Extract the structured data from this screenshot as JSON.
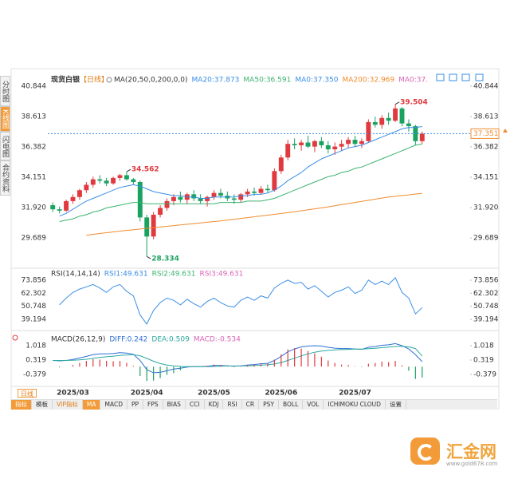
{
  "header": {
    "title": "现货白银",
    "period": "【日线】"
  },
  "sidebar": [
    "分时图",
    "K线图",
    "闪电图",
    "合约资料"
  ],
  "period_tab": "日线",
  "toolbar": {
    "tabs": [
      "指标",
      "模板"
    ],
    "vip": "VIP指标",
    "indicators": [
      "MA",
      "MACD",
      "PP",
      "FPS",
      "BIAS",
      "CCI",
      "KDJ",
      "RSI",
      "CR",
      "PSY",
      "BOLL",
      "VOL",
      "ICHIMOKU CLOUD"
    ],
    "settings": "设置"
  },
  "watermark": {
    "name": "汇金网",
    "url": "www.gold678.com"
  },
  "chart_data": [
    {
      "type": "candlestick",
      "legend_title": "MA(20,50,0,200,0,0)",
      "up_color": "#e0393e",
      "down_color": "#1aa260",
      "high_label_color": "#e0393e",
      "low_label_color": "#1aa260",
      "last_color": "#f08c30",
      "categories": [
        null,
        null,
        null,
        "2025/03",
        null,
        null,
        null,
        null,
        null,
        null,
        null,
        null,
        null,
        null,
        "2025/04",
        null,
        null,
        null,
        null,
        null,
        null,
        null,
        null,
        null,
        "2025/05",
        null,
        null,
        null,
        null,
        null,
        null,
        null,
        null,
        null,
        "2025/06",
        null,
        null,
        null,
        null,
        null,
        null,
        null,
        null,
        null,
        null,
        "2025/07",
        null,
        null,
        null,
        null,
        null,
        null,
        null,
        null,
        null,
        null
      ],
      "open": [
        32.1,
        31.8,
        31.7,
        32.4,
        32.7,
        33.2,
        33.6,
        34.0,
        33.9,
        33.7,
        34.1,
        34.3,
        34.0,
        33.8,
        31.2,
        29.8,
        31.4,
        31.9,
        32.4,
        32.7,
        32.5,
        32.9,
        32.6,
        32.4,
        32.7,
        33.0,
        32.8,
        32.6,
        32.5,
        32.9,
        33.1,
        33.0,
        33.3,
        33.2,
        34.6,
        35.6,
        36.6,
        36.5,
        36.7,
        36.4,
        36.8,
        36.5,
        36.2,
        36.4,
        36.6,
        36.9,
        36.6,
        36.8,
        38.2,
        38.0,
        38.5,
        38.3,
        39.2,
        38.1,
        37.9,
        36.8
      ],
      "high": [
        32.3,
        32.0,
        32.5,
        32.9,
        33.3,
        33.8,
        34.2,
        34.3,
        34.1,
        34.2,
        34.4,
        34.562,
        34.1,
        33.9,
        31.4,
        31.6,
        32.1,
        32.6,
        32.9,
        33.1,
        33.0,
        33.2,
        32.9,
        32.8,
        33.2,
        33.3,
        33.1,
        32.9,
        33.0,
        33.3,
        33.4,
        33.5,
        33.6,
        34.8,
        35.8,
        36.9,
        37.0,
        36.9,
        37.2,
        36.9,
        37.1,
        36.8,
        36.7,
        36.9,
        37.1,
        37.2,
        37.0,
        38.4,
        38.6,
        38.7,
        38.9,
        39.504,
        39.3,
        38.4,
        38.0,
        37.5
      ],
      "low": [
        31.6,
        31.5,
        31.6,
        32.2,
        32.5,
        33.0,
        33.4,
        33.7,
        33.5,
        33.6,
        33.9,
        33.9,
        33.6,
        30.9,
        28.334,
        29.6,
        31.2,
        31.7,
        32.1,
        32.3,
        32.2,
        32.4,
        32.2,
        32.0,
        32.5,
        32.6,
        32.4,
        32.2,
        32.3,
        32.7,
        32.8,
        32.9,
        33.0,
        33.1,
        34.4,
        35.4,
        36.2,
        36.1,
        36.3,
        36.0,
        36.3,
        35.9,
        35.8,
        36.1,
        36.3,
        36.4,
        36.3,
        36.7,
        37.8,
        37.7,
        38.0,
        38.2,
        37.9,
        37.5,
        36.5,
        36.6
      ],
      "close": [
        31.8,
        31.7,
        32.4,
        32.7,
        33.2,
        33.6,
        34.0,
        33.9,
        33.7,
        34.1,
        34.3,
        34.0,
        33.8,
        31.2,
        29.8,
        31.4,
        31.9,
        32.4,
        32.7,
        32.5,
        32.9,
        32.6,
        32.4,
        32.7,
        33.0,
        32.8,
        32.6,
        32.5,
        32.9,
        33.1,
        33.0,
        33.3,
        33.2,
        34.6,
        35.6,
        36.6,
        36.5,
        36.7,
        36.4,
        36.8,
        36.5,
        36.2,
        36.4,
        36.6,
        36.9,
        36.6,
        36.8,
        38.2,
        38.0,
        38.5,
        38.3,
        39.2,
        38.1,
        37.9,
        36.8,
        37.351
      ],
      "series": [
        {
          "name": "MA20:37.873",
          "color": "#3a8ee6",
          "values": [
            null,
            31.3,
            31.5,
            31.8,
            32.1,
            32.4,
            32.6,
            32.8,
            33.0,
            33.2,
            33.4,
            33.5,
            33.6,
            33.5,
            33.3,
            33.1,
            33.0,
            32.9,
            32.8,
            32.8,
            32.7,
            32.7,
            32.6,
            32.6,
            32.7,
            32.7,
            32.7,
            32.7,
            32.8,
            32.8,
            32.9,
            32.9,
            33.0,
            33.2,
            33.5,
            33.9,
            34.2,
            34.5,
            34.9,
            35.2,
            35.5,
            35.7,
            35.9,
            36.1,
            36.3,
            36.4,
            36.5,
            36.7,
            36.9,
            37.1,
            37.3,
            37.5,
            37.7,
            37.8,
            37.8,
            37.873
          ]
        },
        {
          "name": "MA50:36.591",
          "color": "#3cb371",
          "values": [
            null,
            30.9,
            31.0,
            31.1,
            31.3,
            31.4,
            31.6,
            31.7,
            31.9,
            32.0,
            32.1,
            32.2,
            32.3,
            32.3,
            32.2,
            32.2,
            32.2,
            32.2,
            32.2,
            32.2,
            32.2,
            32.2,
            32.2,
            32.2,
            32.2,
            32.3,
            32.3,
            32.3,
            32.3,
            32.4,
            32.4,
            32.4,
            32.5,
            32.6,
            32.8,
            33.0,
            33.2,
            33.4,
            33.6,
            33.8,
            34.0,
            34.2,
            34.3,
            34.5,
            34.6,
            34.8,
            34.9,
            35.1,
            35.3,
            35.5,
            35.7,
            35.9,
            36.1,
            36.3,
            36.5,
            36.591
          ]
        },
        {
          "name": "MA0:37.350",
          "color": "#3a8ee6"
        },
        {
          "name": "MA200:32.969",
          "color": "#f08c30",
          "values": [
            null,
            null,
            null,
            null,
            null,
            29.9,
            29.96,
            30.02,
            30.08,
            30.14,
            30.2,
            30.25,
            30.3,
            30.35,
            30.4,
            30.45,
            30.5,
            30.55,
            30.6,
            30.65,
            30.7,
            30.75,
            30.8,
            30.85,
            30.9,
            30.95,
            31.01,
            31.07,
            31.13,
            31.19,
            31.25,
            31.31,
            31.37,
            31.43,
            31.49,
            31.55,
            31.62,
            31.69,
            31.76,
            31.83,
            31.9,
            31.98,
            32.06,
            32.14,
            32.22,
            32.3,
            32.38,
            32.46,
            32.54,
            32.62,
            32.7,
            32.75,
            32.81,
            32.86,
            32.92,
            32.969
          ]
        },
        {
          "name": "MA0:37.",
          "color": "#d965b5"
        }
      ],
      "ylim": [
        28.0,
        41.3
      ],
      "yticks": [
        40.844,
        38.613,
        36.382,
        34.151,
        {
          "value": 31.92,
          "label": "31.920"
        },
        29.689
      ]
    },
    {
      "type": "line",
      "legend_title": "RSI(14,14,14)",
      "series": [
        {
          "name": "RSI1:49.631",
          "color": "#3a8ee6",
          "values": [
            null,
            52,
            58,
            63,
            66,
            68,
            70,
            67,
            63,
            68,
            70,
            64,
            60,
            43,
            35,
            47,
            54,
            58,
            56,
            52,
            57,
            53,
            50,
            55,
            58,
            54,
            51,
            50,
            56,
            59,
            56,
            60,
            58,
            67,
            71,
            74,
            71,
            72,
            66,
            69,
            64,
            59,
            63,
            65,
            68,
            62,
            65,
            74,
            70,
            73,
            70,
            76,
            63,
            58,
            44,
            49.631
          ]
        },
        {
          "name": "RSI2:49.631",
          "color": "#3cb371"
        },
        {
          "name": "RSI3:49.631",
          "color": "#d965b5"
        }
      ],
      "ylim": [
        33.5,
        79.5
      ],
      "yticks": [
        73.856,
        62.302,
        50.748,
        39.194
      ]
    },
    {
      "type": "macd",
      "legend_title": "MACD(26,12,9)",
      "up_color": "#e0393e",
      "down_color": "#1aa260",
      "series": [
        {
          "name": "DIFF:0.242",
          "color": "#2f6fd6",
          "values": [
            0.3,
            0.28,
            0.3,
            0.35,
            0.42,
            0.5,
            0.58,
            0.62,
            0.62,
            0.64,
            0.68,
            0.66,
            0.6,
            0.3,
            -0.15,
            -0.3,
            -0.28,
            -0.2,
            -0.12,
            -0.08,
            -0.02,
            0.0,
            0.0,
            0.02,
            0.06,
            0.06,
            0.04,
            0.02,
            0.04,
            0.08,
            0.1,
            0.14,
            0.16,
            0.3,
            0.5,
            0.72,
            0.86,
            0.96,
            1.0,
            1.02,
            1.0,
            0.94,
            0.9,
            0.88,
            0.88,
            0.86,
            0.84,
            0.94,
            0.98,
            1.04,
            1.06,
            1.12,
            1.02,
            0.86,
            0.58,
            0.242
          ]
        },
        {
          "name": "DEA:0.509",
          "color": "#2aa9a0",
          "values": [
            0.3,
            0.3,
            0.3,
            0.31,
            0.33,
            0.36,
            0.4,
            0.45,
            0.48,
            0.51,
            0.54,
            0.57,
            0.58,
            0.53,
            0.4,
            0.26,
            0.15,
            0.08,
            0.04,
            0.01,
            0.0,
            0.0,
            0.0,
            0.0,
            0.01,
            0.02,
            0.03,
            0.03,
            0.03,
            0.04,
            0.05,
            0.07,
            0.09,
            0.13,
            0.2,
            0.3,
            0.41,
            0.52,
            0.62,
            0.7,
            0.76,
            0.79,
            0.81,
            0.83,
            0.84,
            0.85,
            0.85,
            0.87,
            0.89,
            0.92,
            0.95,
            0.98,
            0.99,
            0.96,
            0.88,
            0.509
          ]
        },
        {
          "name": "MACD:-0.534",
          "color": "#d965b5",
          "bars": true,
          "values": [
            0.0,
            -0.04,
            0.0,
            0.08,
            0.18,
            0.28,
            0.36,
            0.34,
            0.28,
            0.26,
            0.28,
            0.18,
            0.04,
            -0.46,
            -0.7,
            -0.68,
            -0.56,
            -0.4,
            -0.32,
            -0.18,
            -0.04,
            0.0,
            0.0,
            0.04,
            0.1,
            0.08,
            0.02,
            -0.02,
            0.02,
            0.08,
            0.1,
            0.14,
            0.14,
            0.34,
            0.6,
            0.84,
            0.9,
            0.88,
            0.76,
            0.64,
            0.48,
            0.3,
            0.18,
            0.1,
            0.08,
            0.02,
            -0.02,
            0.14,
            0.18,
            0.24,
            0.22,
            0.28,
            0.06,
            -0.2,
            -0.6,
            -0.534
          ]
        }
      ],
      "ylim": [
        -0.73,
        1.33
      ],
      "yticks": [
        1.018,
        0.319,
        -0.379
      ]
    }
  ]
}
